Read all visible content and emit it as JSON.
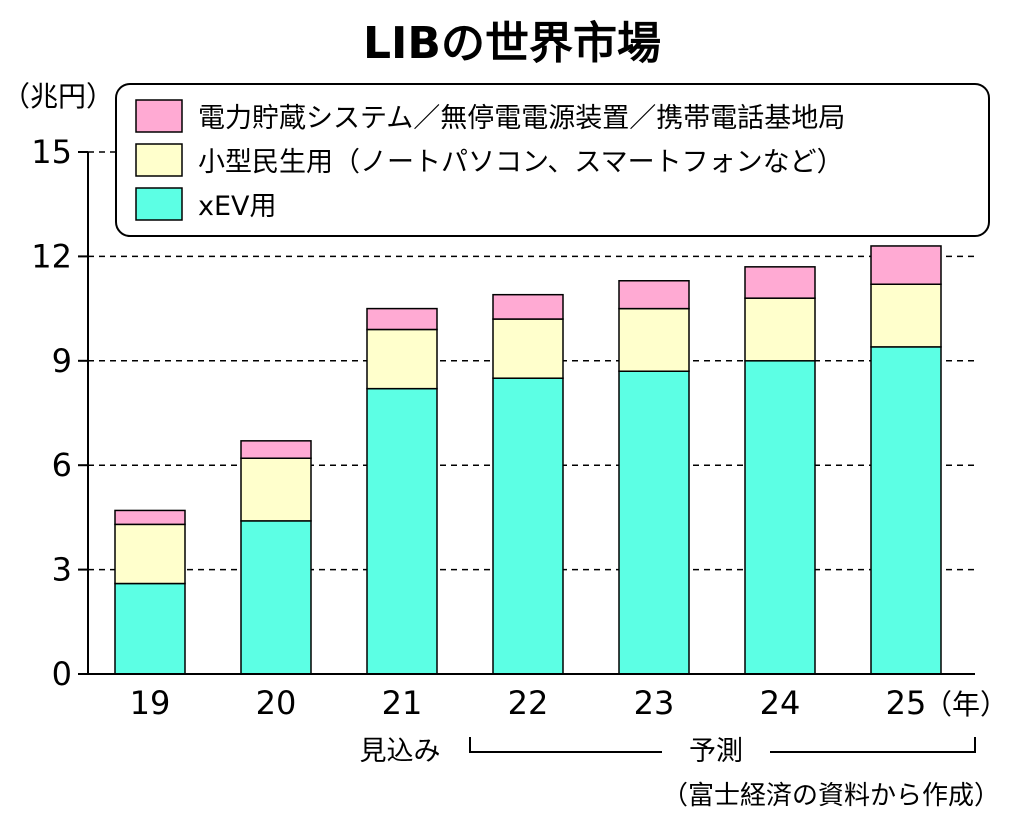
{
  "chart_data": {
    "type": "bar",
    "stacked": true,
    "title": "LIBの世界市場",
    "ylabel": "（兆円）",
    "xlabel_unit": "（年）",
    "ylim": [
      0,
      15
    ],
    "y_ticks": [
      0,
      3,
      6,
      9,
      12,
      15
    ],
    "grid": "dashed horizontal",
    "categories": [
      "19",
      "20",
      "21",
      "22",
      "23",
      "24",
      "25"
    ],
    "series": [
      {
        "name": "xEV用",
        "color": "#5cffe4",
        "values": [
          2.6,
          4.4,
          8.2,
          8.5,
          8.7,
          9.0,
          9.4
        ]
      },
      {
        "name": "小型民生用（ノートパソコン、スマートフォンなど）",
        "color": "#ffffcc",
        "values": [
          1.7,
          1.8,
          1.7,
          1.7,
          1.8,
          1.8,
          1.8
        ]
      },
      {
        "name": "電力貯蔵システム／無停電電源装置／携帯電話基地局",
        "color": "#ffaad3",
        "values": [
          0.4,
          0.5,
          0.6,
          0.7,
          0.8,
          0.9,
          1.1
        ]
      }
    ],
    "legend": {
      "placement": "top",
      "order": [
        2,
        1,
        0
      ]
    },
    "annotations": {
      "estimate": "見込み",
      "forecast": "予測",
      "source": "（富士経済の資料から作成）"
    }
  }
}
